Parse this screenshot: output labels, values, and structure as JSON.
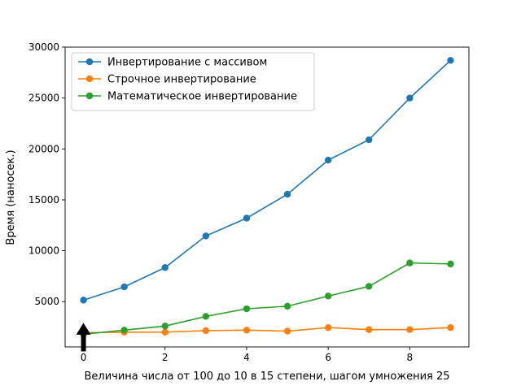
{
  "chart_data": {
    "type": "line",
    "title": "",
    "xlabel": "Величина числа от 100 до 10 в 15 степени, шагом умножения 25",
    "ylabel": "Время (наносек.)",
    "x": [
      0,
      1,
      2,
      3,
      4,
      5,
      6,
      7,
      8,
      9
    ],
    "xlim": [
      -0.45,
      9.45
    ],
    "ylim": [
      550,
      30000
    ],
    "xticks": [
      0,
      2,
      4,
      6,
      8
    ],
    "yticks": [
      5000,
      10000,
      15000,
      20000,
      25000,
      30000
    ],
    "grid": false,
    "legend_position": "top-left",
    "series": [
      {
        "name": "Инвертирование с массивом",
        "color": "#1f77b4",
        "values": [
          5150,
          6450,
          8350,
          11450,
          13200,
          15550,
          18900,
          20900,
          25000,
          28700
        ]
      },
      {
        "name": "Строчное инвертирование",
        "color": "#ff7f0e",
        "values": [
          1950,
          2000,
          2000,
          2150,
          2200,
          2100,
          2450,
          2250,
          2250,
          2450
        ]
      },
      {
        "name": "Математическое инвертирование",
        "color": "#2ca02c",
        "values": [
          1800,
          2200,
          2600,
          3550,
          4300,
          4550,
          5550,
          6500,
          8800,
          8700
        ]
      }
    ],
    "annotation": {
      "type": "arrow",
      "x": 0,
      "y": 1800,
      "color": "#000000"
    }
  }
}
